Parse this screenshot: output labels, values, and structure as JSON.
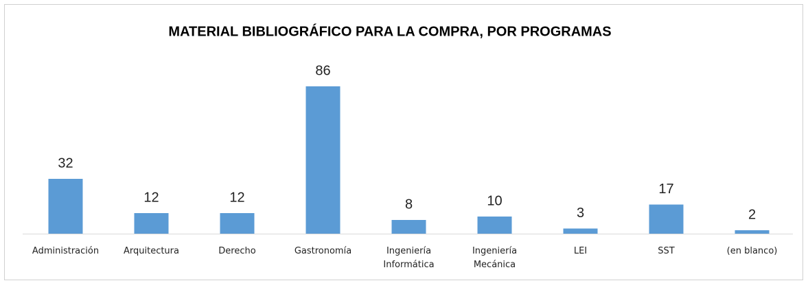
{
  "chart_data": {
    "type": "bar",
    "title": "MATERIAL BIBLIOGRÁFICO PARA LA COMPRA, POR PROGRAMAS",
    "categories": [
      "Administración",
      "Arquitectura",
      "Derecho",
      "Gastronomía",
      "Ingeniería Informática",
      "Ingeniería Mecánica",
      "LEI",
      "SST",
      "(en blanco)"
    ],
    "values": [
      32,
      12,
      12,
      86,
      8,
      10,
      3,
      17,
      2
    ],
    "color": "#5b9bd5"
  }
}
